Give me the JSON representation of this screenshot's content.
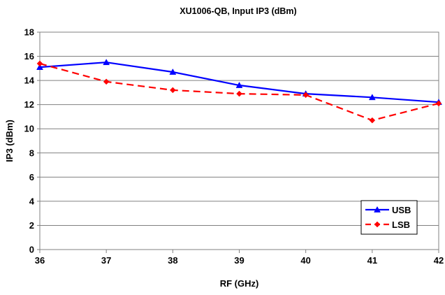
{
  "chart_data": {
    "type": "line",
    "title": "XU1006-QB, Input IP3 (dBm)",
    "xlabel": "RF (GHz)",
    "ylabel": "IP3 (dBm)",
    "x": [
      36,
      37,
      38,
      39,
      40,
      41,
      42
    ],
    "xlim": [
      36,
      42
    ],
    "ylim": [
      0,
      18
    ],
    "x_ticks": [
      "36",
      "37",
      "38",
      "39",
      "40",
      "41",
      "42"
    ],
    "y_ticks": [
      "0",
      "2",
      "4",
      "6",
      "8",
      "10",
      "12",
      "14",
      "16",
      "18"
    ],
    "grid": "horizontal",
    "legend_position": "bottom-right",
    "series": [
      {
        "name": "USB",
        "color": "#0000ff",
        "marker": "triangle",
        "line_style": "solid",
        "values": [
          15.1,
          15.5,
          14.7,
          13.6,
          12.9,
          12.6,
          12.2
        ]
      },
      {
        "name": "LSB",
        "color": "#ff0000",
        "marker": "diamond",
        "line_style": "dashed",
        "values": [
          15.4,
          13.9,
          13.2,
          12.9,
          12.8,
          10.7,
          12.1
        ]
      }
    ]
  }
}
